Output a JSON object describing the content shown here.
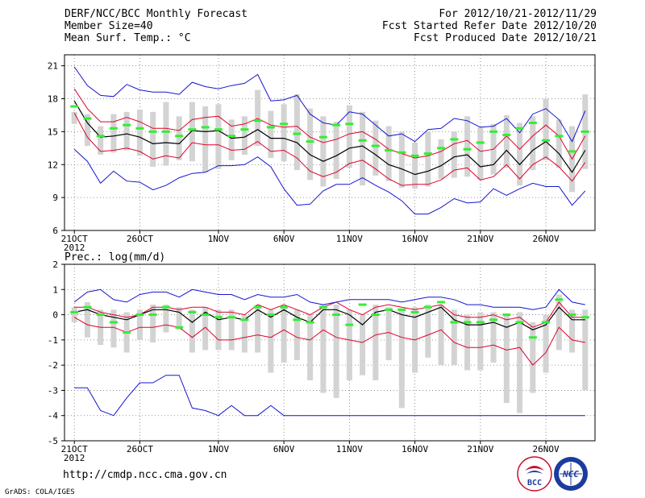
{
  "header": {
    "title": "DERF/NCC/BCC Monthly Forecast",
    "member_size": "Member Size=40",
    "variable": "Mean Surf. Temp.: °C",
    "period": "For 2012/10/21-2012/11/29",
    "started": "Fcst Started Refer Date 2012/10/20",
    "produced": "Fcst Produced Date 2012/10/21"
  },
  "footer": {
    "url": "http://cmdp.ncc.cma.gov.cn",
    "credit": "GrADS: COLA/IGES",
    "logo1_label": "BCC",
    "logo2_label": "NCC"
  },
  "colors": {
    "mean": "#000000",
    "spread": "#e0002a",
    "range": "#1414d2",
    "box": "#d3d3d3",
    "median": "#33ee33",
    "grid": "#777777"
  },
  "chart_data": [
    {
      "type": "line",
      "name": "temperature",
      "title": "Mean Surf. Temp.: °C",
      "x": [
        "2012-10-21",
        "2012-10-22",
        "2012-10-23",
        "2012-10-24",
        "2012-10-25",
        "2012-10-26",
        "2012-10-27",
        "2012-10-28",
        "2012-10-29",
        "2012-10-30",
        "2012-10-31",
        "2012-11-01",
        "2012-11-02",
        "2012-11-03",
        "2012-11-04",
        "2012-11-05",
        "2012-11-06",
        "2012-11-07",
        "2012-11-08",
        "2012-11-09",
        "2012-11-10",
        "2012-11-11",
        "2012-11-12",
        "2012-11-13",
        "2012-11-14",
        "2012-11-15",
        "2012-11-16",
        "2012-11-17",
        "2012-11-18",
        "2012-11-19",
        "2012-11-20",
        "2012-11-21",
        "2012-11-22",
        "2012-11-23",
        "2012-11-24",
        "2012-11-25",
        "2012-11-26",
        "2012-11-27",
        "2012-11-28",
        "2012-11-29"
      ],
      "xticks": [
        {
          "i": 0,
          "label": "21OCT"
        },
        {
          "i": 5,
          "label": "26OCT"
        },
        {
          "i": 11,
          "label": "1NOV"
        },
        {
          "i": 16,
          "label": "6NOV"
        },
        {
          "i": 21,
          "label": "11NOV"
        },
        {
          "i": 26,
          "label": "16NOV"
        },
        {
          "i": 31,
          "label": "21NOV"
        },
        {
          "i": 36,
          "label": "26NOV"
        }
      ],
      "year_label": "2012",
      "ylim": [
        6,
        22
      ],
      "yticks": [
        6,
        9,
        12,
        15,
        18,
        21
      ],
      "series": [
        {
          "name": "max",
          "role": "range",
          "values": [
            20.9,
            19.2,
            18.3,
            18.2,
            19.3,
            18.8,
            18.6,
            18.6,
            18.4,
            19.5,
            19.1,
            18.9,
            19.2,
            19.4,
            20.2,
            17.8,
            17.9,
            18.3,
            16.6,
            15.8,
            15.6,
            16.8,
            16.6,
            15.6,
            14.6,
            14.8,
            14.1,
            15.2,
            15.3,
            16.2,
            16.0,
            15.4,
            15.5,
            16.2,
            14.9,
            16.6,
            17.1,
            16.1,
            14.1,
            16.9
          ]
        },
        {
          "name": "mean+sd",
          "role": "spread",
          "values": [
            18.9,
            17.1,
            15.9,
            15.9,
            16.3,
            15.9,
            15.3,
            15.3,
            15.1,
            16.1,
            16.3,
            16.4,
            15.5,
            15.7,
            16.2,
            15.6,
            15.4,
            15.5,
            14.5,
            14.0,
            14.3,
            14.8,
            15.0,
            14.3,
            13.4,
            13.0,
            12.6,
            12.8,
            13.2,
            13.9,
            14.2,
            13.2,
            13.4,
            14.6,
            13.4,
            14.6,
            15.6,
            14.6,
            12.5,
            14.6
          ]
        },
        {
          "name": "mean",
          "role": "mean",
          "values": [
            17.8,
            15.8,
            14.5,
            14.6,
            14.8,
            14.5,
            13.9,
            14.0,
            13.9,
            15.1,
            15.0,
            15.1,
            14.4,
            14.5,
            15.2,
            14.4,
            14.4,
            14.0,
            12.9,
            12.3,
            12.8,
            13.5,
            13.7,
            12.9,
            12.0,
            11.6,
            11.1,
            11.4,
            11.9,
            12.7,
            12.9,
            11.8,
            12.0,
            13.3,
            12.0,
            13.3,
            14.1,
            13.0,
            11.3,
            13.3
          ]
        },
        {
          "name": "mean-sd",
          "role": "spread",
          "values": [
            16.7,
            14.5,
            13.2,
            13.3,
            13.5,
            13.2,
            12.5,
            12.8,
            12.6,
            14.0,
            13.8,
            13.8,
            13.3,
            13.4,
            14.1,
            13.2,
            13.3,
            12.6,
            11.4,
            10.9,
            11.3,
            12.1,
            12.4,
            11.6,
            10.7,
            10.1,
            10.2,
            10.2,
            10.6,
            11.5,
            11.7,
            10.6,
            10.9,
            12.0,
            10.7,
            12.0,
            12.7,
            11.8,
            10.5,
            12.2
          ]
        },
        {
          "name": "min",
          "role": "range",
          "values": [
            13.4,
            12.3,
            10.3,
            11.4,
            10.5,
            10.4,
            9.7,
            10.1,
            10.8,
            11.2,
            11.3,
            11.9,
            11.9,
            12.0,
            12.7,
            11.8,
            9.8,
            8.3,
            8.4,
            9.6,
            10.2,
            10.2,
            10.8,
            10.1,
            9.5,
            8.7,
            7.5,
            7.5,
            8.1,
            8.9,
            8.5,
            8.6,
            9.8,
            9.2,
            9.8,
            10.3,
            10.0,
            10.0,
            8.3,
            9.6
          ]
        }
      ],
      "boxes": {
        "top": [
          16.8,
          16.6,
          15.5,
          16.6,
          16.8,
          17.0,
          16.8,
          17.7,
          16.4,
          17.7,
          17.3,
          17.5,
          16.1,
          16.4,
          18.8,
          16.9,
          17.5,
          18.4,
          17.1,
          16.4,
          15.9,
          17.4,
          16.8,
          16.0,
          15.5,
          15.0,
          14.0,
          15.0,
          14.3,
          15.0,
          16.4,
          15.4,
          15.7,
          16.5,
          15.8,
          16.4,
          18.0,
          16.1,
          15.5,
          18.4
        ],
        "bottom": [
          15.7,
          13.7,
          12.9,
          13.1,
          13.3,
          12.8,
          11.8,
          11.9,
          12.4,
          12.3,
          11.3,
          11.6,
          12.4,
          12.9,
          13.7,
          12.6,
          12.3,
          11.5,
          10.6,
          10.0,
          10.7,
          11.7,
          10.1,
          11.0,
          10.5,
          9.9,
          9.8,
          10.0,
          10.7,
          10.8,
          10.9,
          10.6,
          11.1,
          11.7,
          10.1,
          11.5,
          12.4,
          11.7,
          9.5,
          11.6
        ],
        "median": [
          17.3,
          16.2,
          14.6,
          15.3,
          15.6,
          15.3,
          15.0,
          15.0,
          14.6,
          15.2,
          15.4,
          15.2,
          14.6,
          15.2,
          16.0,
          15.4,
          15.7,
          14.8,
          14.1,
          14.5,
          15.6,
          15.7,
          14.2,
          13.7,
          13.3,
          13.1,
          12.8,
          13.0,
          13.5,
          14.3,
          13.4,
          14.0,
          15.0,
          14.7,
          15.3,
          15.8,
          14.2,
          14.6,
          13.2,
          15.0
        ]
      }
    },
    {
      "type": "line",
      "name": "precipitation",
      "title": "Prec.: log(mm/d)",
      "x": [
        "2012-10-21",
        "2012-10-22",
        "2012-10-23",
        "2012-10-24",
        "2012-10-25",
        "2012-10-26",
        "2012-10-27",
        "2012-10-28",
        "2012-10-29",
        "2012-10-30",
        "2012-10-31",
        "2012-11-01",
        "2012-11-02",
        "2012-11-03",
        "2012-11-04",
        "2012-11-05",
        "2012-11-06",
        "2012-11-07",
        "2012-11-08",
        "2012-11-09",
        "2012-11-10",
        "2012-11-11",
        "2012-11-12",
        "2012-11-13",
        "2012-11-14",
        "2012-11-15",
        "2012-11-16",
        "2012-11-17",
        "2012-11-18",
        "2012-11-19",
        "2012-11-20",
        "2012-11-21",
        "2012-11-22",
        "2012-11-23",
        "2012-11-24",
        "2012-11-25",
        "2012-11-26",
        "2012-11-27",
        "2012-11-28",
        "2012-11-29"
      ],
      "xticks": [
        {
          "i": 0,
          "label": "21OCT"
        },
        {
          "i": 5,
          "label": "26OCT"
        },
        {
          "i": 11,
          "label": "1NOV"
        },
        {
          "i": 16,
          "label": "6NOV"
        },
        {
          "i": 21,
          "label": "11NOV"
        },
        {
          "i": 26,
          "label": "16NOV"
        },
        {
          "i": 31,
          "label": "21NOV"
        },
        {
          "i": 36,
          "label": "26NOV"
        }
      ],
      "year_label": "2012",
      "ylim": [
        -5,
        2
      ],
      "yticks": [
        -5,
        -4,
        -3,
        -2,
        -1,
        0,
        1,
        2
      ],
      "series": [
        {
          "name": "max",
          "role": "range",
          "values": [
            0.5,
            0.9,
            1.0,
            0.6,
            0.5,
            0.8,
            0.9,
            0.9,
            0.7,
            1.0,
            0.9,
            0.8,
            0.8,
            0.6,
            0.8,
            0.7,
            0.7,
            0.8,
            0.5,
            0.4,
            0.5,
            0.6,
            0.6,
            0.6,
            0.6,
            0.5,
            0.6,
            0.7,
            0.7,
            0.6,
            0.4,
            0.4,
            0.3,
            0.3,
            0.3,
            0.2,
            0.3,
            1.0,
            0.5,
            0.4
          ]
        },
        {
          "name": "mean+sd",
          "role": "spread",
          "values": [
            0.3,
            0.3,
            0.1,
            0.0,
            -0.1,
            0.0,
            0.3,
            0.3,
            0.2,
            0.3,
            0.3,
            0.1,
            0.1,
            0.0,
            0.4,
            0.2,
            0.4,
            0.2,
            0.0,
            0.3,
            0.5,
            0.2,
            0.0,
            0.3,
            0.4,
            0.3,
            0.2,
            0.3,
            0.4,
            0.0,
            -0.1,
            -0.1,
            0.0,
            -0.2,
            -0.1,
            -0.5,
            -0.3,
            0.5,
            -0.1,
            -0.1
          ]
        },
        {
          "name": "mean",
          "role": "mean",
          "values": [
            0.1,
            0.2,
            0.0,
            -0.1,
            -0.2,
            0.0,
            0.2,
            0.2,
            0.1,
            -0.3,
            0.1,
            -0.2,
            -0.1,
            -0.2,
            0.2,
            -0.1,
            0.2,
            -0.1,
            -0.3,
            0.2,
            0.2,
            0.0,
            -0.4,
            0.1,
            0.2,
            0.0,
            -0.1,
            0.1,
            0.3,
            -0.2,
            -0.4,
            -0.4,
            -0.3,
            -0.5,
            -0.3,
            -0.6,
            -0.4,
            0.3,
            -0.2,
            -0.2
          ]
        },
        {
          "name": "mean-sd",
          "role": "spread",
          "values": [
            -0.1,
            -0.4,
            -0.5,
            -0.5,
            -0.7,
            -0.5,
            -0.5,
            -0.4,
            -0.5,
            -0.9,
            -0.5,
            -1.0,
            -1.0,
            -0.9,
            -0.8,
            -0.9,
            -0.6,
            -0.9,
            -1.0,
            -0.6,
            -0.9,
            -1.0,
            -1.1,
            -0.8,
            -0.7,
            -0.9,
            -1.0,
            -0.8,
            -0.6,
            -1.1,
            -1.3,
            -1.3,
            -1.2,
            -1.4,
            -1.3,
            -2.0,
            -1.5,
            -0.5,
            -1.0,
            -1.1
          ]
        },
        {
          "name": "min",
          "role": "range",
          "values": [
            -2.9,
            -2.9,
            -3.8,
            -4.0,
            -3.3,
            -2.7,
            -2.7,
            -2.4,
            -2.4,
            -3.7,
            -3.8,
            -4.0,
            -3.6,
            -4.0,
            -4.0,
            -3.6,
            -4.0,
            -4.0,
            -4.0,
            -4.0,
            -4.0,
            -4.0,
            -4.0,
            -4.0,
            -4.0,
            -4.0,
            -4.0,
            -4.0,
            -4.0,
            -4.0,
            -4.0,
            -4.0,
            -4.0,
            -4.0,
            -4.0,
            -4.0,
            -4.0,
            -4.0,
            -4.0,
            -4.0
          ]
        }
      ],
      "boxes": {
        "top": [
          0.3,
          0.5,
          0.2,
          0.2,
          0.1,
          0.2,
          0.4,
          0.4,
          0.3,
          0.2,
          0.3,
          0.2,
          0.2,
          0.0,
          0.4,
          0.2,
          0.4,
          0.2,
          0.0,
          0.4,
          0.4,
          0.2,
          0.0,
          0.4,
          0.3,
          0.2,
          0.3,
          0.4,
          0.4,
          0.2,
          0.0,
          0.1,
          0.1,
          0.0,
          0.1,
          -0.3,
          0.0,
          0.8,
          0.2,
          0.2
        ],
        "bottom": [
          -0.3,
          -0.9,
          -1.2,
          -1.3,
          -1.5,
          -1.0,
          -1.1,
          -0.7,
          -0.6,
          -1.5,
          -1.4,
          -1.4,
          -1.4,
          -1.5,
          -1.5,
          -2.3,
          -1.9,
          -1.8,
          -2.6,
          -3.1,
          -3.3,
          -2.6,
          -2.4,
          -2.6,
          -1.8,
          -3.7,
          -2.3,
          -1.7,
          -2.0,
          -2.0,
          -2.2,
          -2.2,
          -1.9,
          -3.5,
          -3.9,
          -3.1,
          -2.3,
          -1.4,
          -1.5,
          -3.0
        ],
        "median": [
          0.1,
          0.3,
          0.0,
          -0.3,
          -0.7,
          0.0,
          0.0,
          0.3,
          -0.5,
          0.1,
          0.0,
          -0.1,
          -0.1,
          -0.2,
          0.3,
          0.0,
          0.3,
          -0.2,
          -0.3,
          0.3,
          0.0,
          -0.4,
          0.4,
          0.0,
          0.2,
          0.2,
          0.1,
          0.3,
          0.5,
          -0.3,
          -0.3,
          -0.3,
          -0.2,
          0.0,
          -0.3,
          -0.9,
          -0.3,
          0.6,
          0.0,
          -0.1
        ]
      }
    }
  ]
}
